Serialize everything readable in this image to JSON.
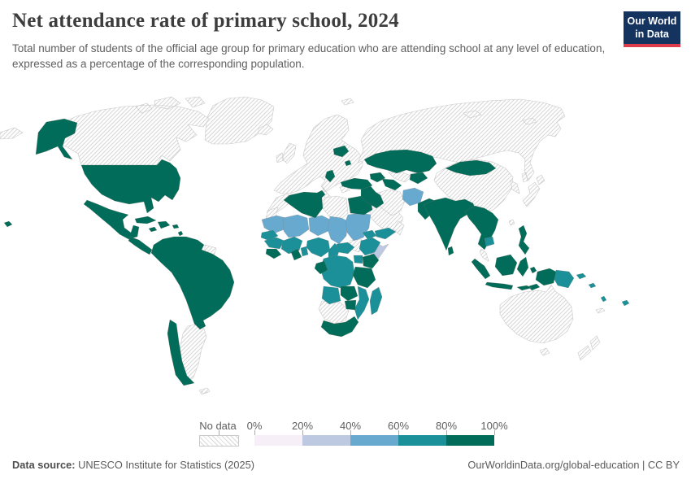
{
  "header": {
    "title": "Net attendance rate of primary school, 2024",
    "subtitle": "Total number of students of the official age group for primary education who are attending school at any level of education, expressed as a percentage of the corresponding population.",
    "logo_line1": "Our World",
    "logo_line2": "in Data",
    "logo_navy": "#15335f",
    "logo_red": "#dc3c4c"
  },
  "legend": {
    "no_data_label": "No data",
    "tick_labels": [
      "0%",
      "20%",
      "40%",
      "60%",
      "80%",
      "100%"
    ],
    "bins": [
      {
        "id": "0-20",
        "color": "#f6eff7"
      },
      {
        "id": "20-40",
        "color": "#bdc9e1"
      },
      {
        "id": "40-60",
        "color": "#67a9cf"
      },
      {
        "id": "60-80",
        "color": "#1c9099"
      },
      {
        "id": "80-100",
        "color": "#016c59"
      }
    ],
    "no_data_pattern": "diagonal-hatch"
  },
  "footer": {
    "source_label": "Data source:",
    "source_text": " UNESCO Institute for Statistics (2025)",
    "right_text": "OurWorldinData.org/global-education | CC BY"
  },
  "chart_data": {
    "type": "choropleth world map",
    "title": "Net attendance rate of primary school",
    "year": 2024,
    "unit": "%",
    "legend_bins": [
      "0-20%",
      "20-40%",
      "40-60%",
      "60-80%",
      "80-100%",
      "No data"
    ],
    "regions": {
      "greenland": "no-data",
      "iceland": "no-data",
      "canada": "no-data",
      "argentina": "no-data",
      "guyanas": "no-data",
      "falklands": "no-data",
      "europe": "no-data",
      "russia": "no-data",
      "saudi-arabia": "no-data",
      "oman": "no-data",
      "iran": "no-data",
      "libya": "no-data",
      "morocco": "no-data",
      "western-sahara": "no-data",
      "south-sudan": "no-data",
      "namibia-botswana": "no-data",
      "uzbekistan": "no-data",
      "china": "no-data",
      "koreas": "no-data",
      "japan": "no-data",
      "taiwan": "no-data",
      "malay-peninsula": "no-data",
      "australia": "no-data",
      "new-zealand": "no-data",
      "new-caledonia": "no-data",
      "mauritania": "40-60",
      "mali": "40-60",
      "niger": "40-60",
      "chad": "40-60",
      "sudan": "40-60",
      "afghanistan": "40-60",
      "somalia": "20-40",
      "senegal-gambia": "60-80",
      "guinea-group": "60-80",
      "cote-divoire-burkina": "60-80",
      "togo-benin": "60-80",
      "nigeria": "60-80",
      "cameroon": "60-80",
      "central-african-republic": "60-80",
      "ethiopia": "60-80",
      "eritrea-djibouti": "60-80",
      "yemen": "60-80",
      "drc-congo": "60-80",
      "uganda-rwanda": "60-80",
      "angola": "60-80",
      "mozambique-malawi": "60-80",
      "madagascar": "60-80",
      "cambodia": "60-80",
      "papua-new-guinea": "60-80",
      "solomon-vanuatu-fiji": "60-80",
      "united-states": "80-100",
      "mexico": "80-100",
      "central-america": "80-100",
      "cuba": "80-100",
      "hispaniola": "80-100",
      "caribbean-islands": "80-100",
      "south-america": "80-100",
      "chile": "80-100",
      "algeria-tunisia": "80-100",
      "egypt": "80-100",
      "sierra-leone-liberia": "80-100",
      "ghana": "80-100",
      "gabon": "80-100",
      "kenya": "80-100",
      "tanzania": "80-100",
      "zambia": "80-100",
      "zimbabwe": "80-100",
      "south-africa": "80-100",
      "belarus": "80-100",
      "moldova": "80-100",
      "serbia-north-macedonia": "80-100",
      "turkey": "80-100",
      "georgia-azerbaijan": "80-100",
      "syria-iraq-jordan": "80-100",
      "kazakhstan": "80-100",
      "turkmenistan": "80-100",
      "kyrgyzstan-tajikistan": "80-100",
      "mongolia": "80-100",
      "pakistan": "80-100",
      "india": "80-100",
      "sri-lanka": "80-100",
      "mainland-se-asia": "80-100",
      "indonesia": "80-100",
      "philippines": "80-100"
    },
    "countries_by_range": {
      "80-100": [
        "United States",
        "Mexico",
        "Cuba",
        "Dominican Republic",
        "Guatemala",
        "Honduras",
        "Nicaragua",
        "Costa Rica",
        "Panama",
        "Colombia",
        "Venezuela",
        "Ecuador",
        "Peru",
        "Brazil",
        "Bolivia",
        "Paraguay",
        "Uruguay",
        "Chile",
        "Algeria",
        "Tunisia",
        "Egypt",
        "Sierra Leone",
        "Liberia",
        "Ghana",
        "Gabon",
        "Kenya",
        "Tanzania",
        "Zambia",
        "Zimbabwe",
        "South Africa",
        "Belarus",
        "Moldova",
        "Serbia",
        "North Macedonia",
        "Turkey",
        "Georgia",
        "Azerbaijan",
        "Iraq",
        "Syria",
        "Jordan",
        "Kazakhstan",
        "Turkmenistan",
        "Kyrgyzstan",
        "Tajikistan",
        "Mongolia",
        "Pakistan",
        "India",
        "Nepal",
        "Bangladesh",
        "Sri Lanka",
        "Myanmar",
        "Thailand",
        "Laos",
        "Vietnam",
        "Philippines",
        "Indonesia"
      ],
      "60-80": [
        "Senegal",
        "Guinea",
        "Cote d'Ivoire",
        "Burkina Faso",
        "Togo",
        "Benin",
        "Nigeria",
        "Cameroon",
        "Central African Republic",
        "DR Congo",
        "Congo",
        "Uganda",
        "Ethiopia",
        "Eritrea",
        "Djibouti",
        "Yemen",
        "Angola",
        "Mozambique",
        "Malawi",
        "Madagascar",
        "Cambodia",
        "Papua New Guinea",
        "Solomon Islands",
        "Vanuatu",
        "Fiji"
      ],
      "40-60": [
        "Mauritania",
        "Mali",
        "Niger",
        "Chad",
        "Sudan",
        "Afghanistan"
      ],
      "20-40": [
        "Somalia"
      ],
      "no-data": [
        "Canada",
        "Greenland",
        "Argentina",
        "Guyana",
        "Suriname",
        "United Kingdom",
        "France",
        "Germany",
        "Spain",
        "Portugal",
        "Italy",
        "Poland",
        "Ukraine",
        "Romania",
        "Greece",
        "Norway",
        "Sweden",
        "Finland",
        "Russia",
        "China",
        "Japan",
        "South Korea",
        "North Korea",
        "Iran",
        "Saudi Arabia",
        "Oman",
        "Libya",
        "Morocco",
        "South Sudan",
        "Namibia",
        "Botswana",
        "Uzbekistan",
        "Malaysia",
        "Australia",
        "New Zealand"
      ]
    }
  }
}
